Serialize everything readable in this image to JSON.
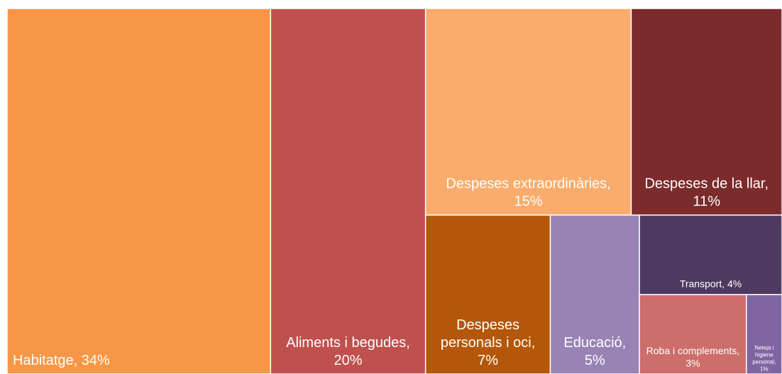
{
  "chart_data": {
    "type": "treemap",
    "categories": [
      "Habitatge, 34%",
      "Aliments i begudes, 20%",
      "Despeses extraordinàries, 15%",
      "Despeses de la llar, 11%",
      "Despeses personals i oci, 7%",
      "Educació, 5%",
      "Transport, 4%",
      "Roba i complements, 3%",
      "Neteja i higiene personal, 1%"
    ],
    "values": [
      34,
      20,
      15,
      11,
      7,
      5,
      4,
      3,
      1
    ],
    "colors": [
      "#f79646",
      "#c0504d",
      "#f9ac6b",
      "#7b2b2c",
      "#b45708",
      "#9983b5",
      "#4e3a60",
      "#cd6e6b",
      "#8064a2"
    ]
  }
}
